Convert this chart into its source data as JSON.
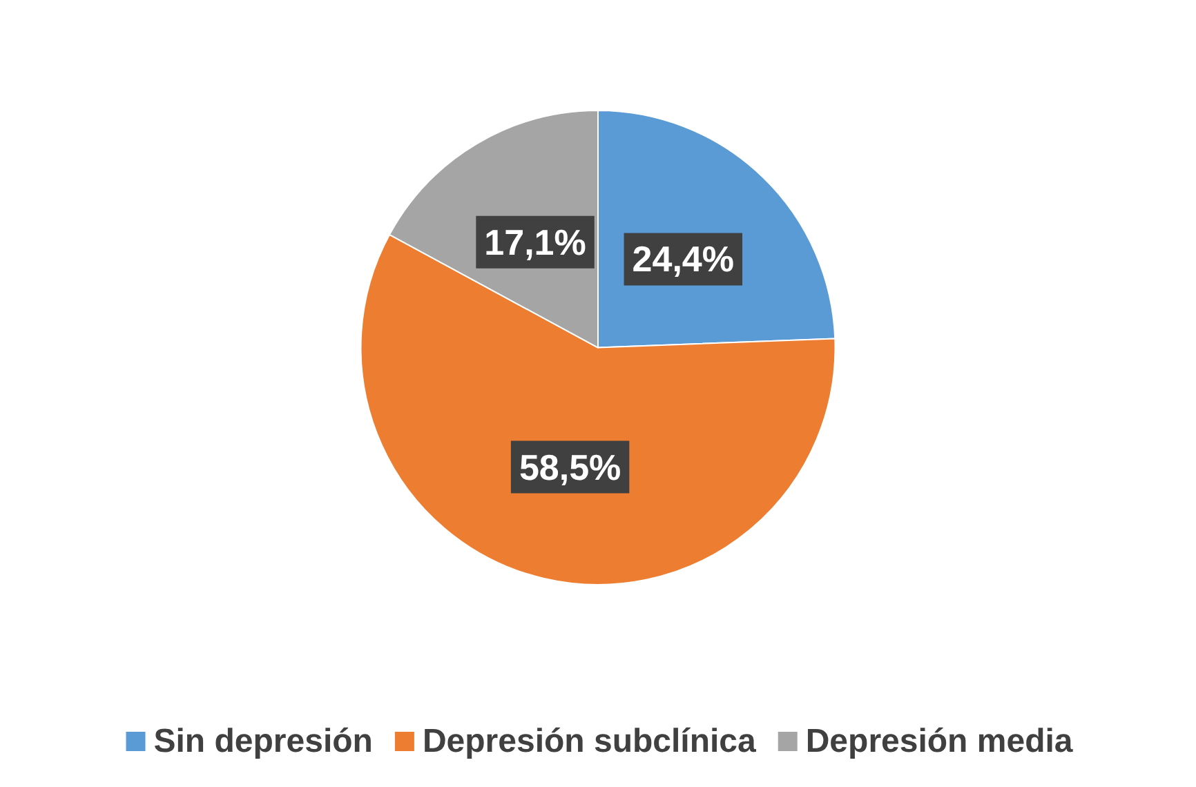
{
  "chart_data": {
    "type": "pie",
    "categories": [
      "Sin depresión",
      "Depresión subclínica",
      "Depresión media"
    ],
    "values": [
      24.4,
      58.5,
      17.1
    ],
    "colors": [
      "#5b9bd5",
      "#ed7d31",
      "#a5a5a5"
    ],
    "value_labels": [
      "24,4%",
      "58,5%",
      "17,1%"
    ],
    "legend": "bottom"
  }
}
